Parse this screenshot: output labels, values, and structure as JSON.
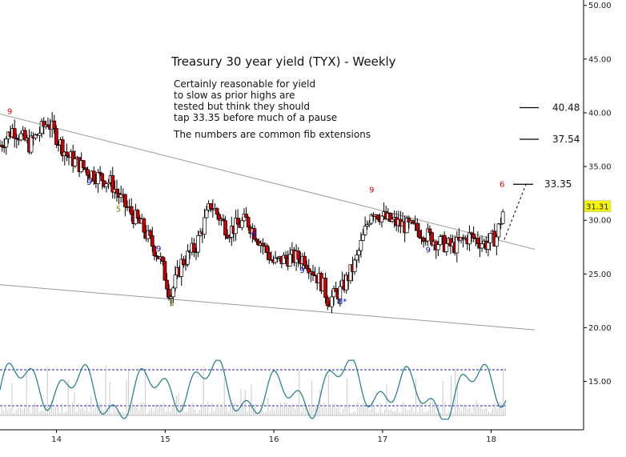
{
  "chart_data": {
    "type": "candlestick",
    "title": "Treasury 30 year yield (TYX) - Weekly",
    "annotation_lines": [
      "Certainly reasonable for yield",
      "to slow as prior highs are",
      "tested but think they should",
      "tap 33.35 before much of a pause",
      "",
      "The numbers are common fib extensions"
    ],
    "y_ticks": [
      "15.00",
      "20.00",
      "25.00",
      "30.00",
      "35.00",
      "40.00",
      "45.00",
      "50.00"
    ],
    "ylim": [
      10.5,
      50.5
    ],
    "x_ticks": [
      "14",
      "15",
      "16",
      "17",
      "18"
    ],
    "xlim": [
      13.48,
      18.85
    ],
    "last_price": "31.31",
    "last_price_color": "#f5f500",
    "targets": [
      {
        "label": "40.48",
        "value": 40.48
      },
      {
        "label": "37.54",
        "value": 37.54
      },
      {
        "label": "33.35",
        "value": 33.35
      }
    ],
    "close_path": [
      [
        13.48,
        37.0
      ],
      [
        13.6,
        38.5
      ],
      [
        13.75,
        37.0
      ],
      [
        13.92,
        39.2
      ],
      [
        14.1,
        36.0
      ],
      [
        14.3,
        34.5
      ],
      [
        14.5,
        33.5
      ],
      [
        14.62,
        31.5
      ],
      [
        14.78,
        29.5
      ],
      [
        14.95,
        26.5
      ],
      [
        15.05,
        23.0
      ],
      [
        15.15,
        26.0
      ],
      [
        15.28,
        27.5
      ],
      [
        15.42,
        31.5
      ],
      [
        15.58,
        29.0
      ],
      [
        15.75,
        30.0
      ],
      [
        15.88,
        28.0
      ],
      [
        16.0,
        26.0
      ],
      [
        16.12,
        26.5
      ],
      [
        16.28,
        26.5
      ],
      [
        16.45,
        24.0
      ],
      [
        16.5,
        22.5
      ],
      [
        16.62,
        23.5
      ],
      [
        16.75,
        26.0
      ],
      [
        16.9,
        31.0
      ],
      [
        17.05,
        30.0
      ],
      [
        17.2,
        29.5
      ],
      [
        17.35,
        29.0
      ],
      [
        17.5,
        28.0
      ],
      [
        17.65,
        27.5
      ],
      [
        17.8,
        28.5
      ],
      [
        17.95,
        27.8
      ],
      [
        18.05,
        28.5
      ],
      [
        18.12,
        31.31
      ]
    ],
    "trendlines": [
      {
        "x": [
          13.48,
          18.4
        ],
        "y": [
          39.9,
          27.3
        ]
      },
      {
        "x": [
          13.48,
          18.4
        ],
        "y": [
          24.0,
          19.8
        ]
      }
    ],
    "projection": {
      "x": [
        18.12,
        18.32
      ],
      "y": [
        28.2,
        33.35
      ]
    },
    "counts": [
      {
        "label": "9",
        "x": 13.57,
        "y": 39.9,
        "color": "#e00000"
      },
      {
        "label": "9",
        "x": 14.3,
        "y": 33.3,
        "color": "#0000cc"
      },
      {
        "label": "5",
        "x": 14.57,
        "y": 30.8,
        "color": "#808000"
      },
      {
        "label": "9",
        "x": 14.94,
        "y": 27.1,
        "color": "#0000cc"
      },
      {
        "label": "5",
        "x": 15.06,
        "y": 22.0,
        "color": "#808000"
      },
      {
        "label": "9",
        "x": 15.82,
        "y": 28.5,
        "color": "#0000cc"
      },
      {
        "label": "9",
        "x": 16.26,
        "y": 25.1,
        "color": "#0000cc"
      },
      {
        "label": "8*",
        "x": 16.63,
        "y": 22.2,
        "color": "#0000cc"
      },
      {
        "label": "9",
        "x": 16.9,
        "y": 32.6,
        "color": "#e00000"
      },
      {
        "label": "9",
        "x": 17.42,
        "y": 27.0,
        "color": "#0000cc"
      },
      {
        "label": "6",
        "x": 18.1,
        "y": 33.1,
        "color": "#e00000"
      }
    ]
  }
}
